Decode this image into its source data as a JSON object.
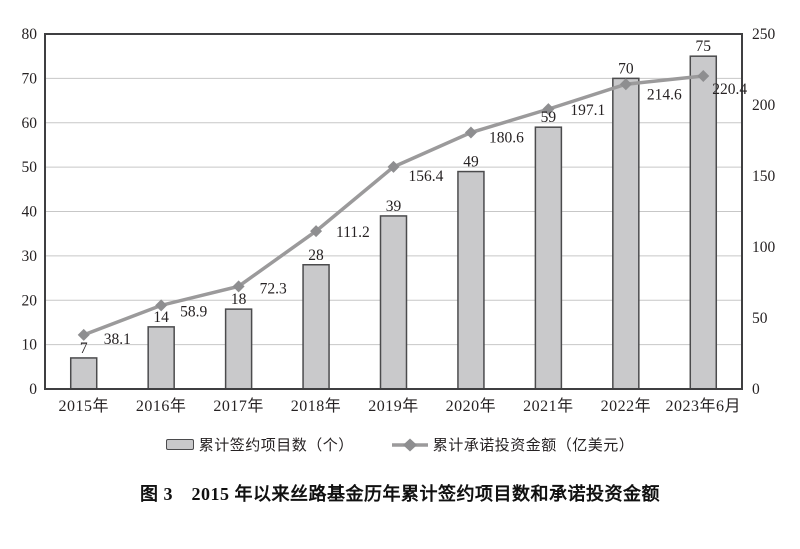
{
  "figure": {
    "caption": "图 3　2015 年以来丝路基金历年累计签约项目数和承诺投资金额"
  },
  "chart_data": {
    "type": "bar+line",
    "categories": [
      "2015年",
      "2016年",
      "2017年",
      "2018年",
      "2019年",
      "2020年",
      "2021年",
      "2022年",
      "2023年6月"
    ],
    "series": [
      {
        "name": "累计签约项目数（个）",
        "type": "bar",
        "axis": "left",
        "values": [
          7,
          14,
          18,
          28,
          39,
          49,
          59,
          70,
          75
        ]
      },
      {
        "name": "累计承诺投资金额（亿美元）",
        "type": "line",
        "axis": "right",
        "values": [
          38.1,
          58.9,
          72.3,
          111.2,
          156.4,
          180.6,
          197.1,
          214.6,
          220.4
        ],
        "label_offsets": [
          {
            "dx": 14,
            "dy": 4
          },
          {
            "dx": 13,
            "dy": 6
          },
          {
            "dx": 15,
            "dy": 2
          },
          {
            "dx": 14,
            "dy": 1
          },
          {
            "dx": 9,
            "dy": 9
          },
          {
            "dx": 12,
            "dy": 5
          },
          {
            "dx": 16,
            "dy": 1
          },
          {
            "dx": 15,
            "dy": 10
          },
          {
            "dx": 3,
            "dy": 13
          }
        ]
      }
    ],
    "left_axis": {
      "min": 0,
      "max": 80,
      "tick_step": 10,
      "ticks": [
        0,
        10,
        20,
        30,
        40,
        50,
        60,
        70,
        80
      ]
    },
    "right_axis": {
      "min": 0,
      "max": 250,
      "tick_step": 50,
      "ticks": [
        0,
        50,
        100,
        150,
        200,
        250
      ]
    },
    "grid": true,
    "legend_position": "bottom",
    "colors": {
      "bar_fill": "#c9c9cb",
      "bar_stroke": "#4b4b4d",
      "line": "#9b9a9b",
      "marker": "#8e8e90",
      "grid": "#c7c7c7",
      "frame": "#3f3f41",
      "text": "#262223"
    }
  }
}
